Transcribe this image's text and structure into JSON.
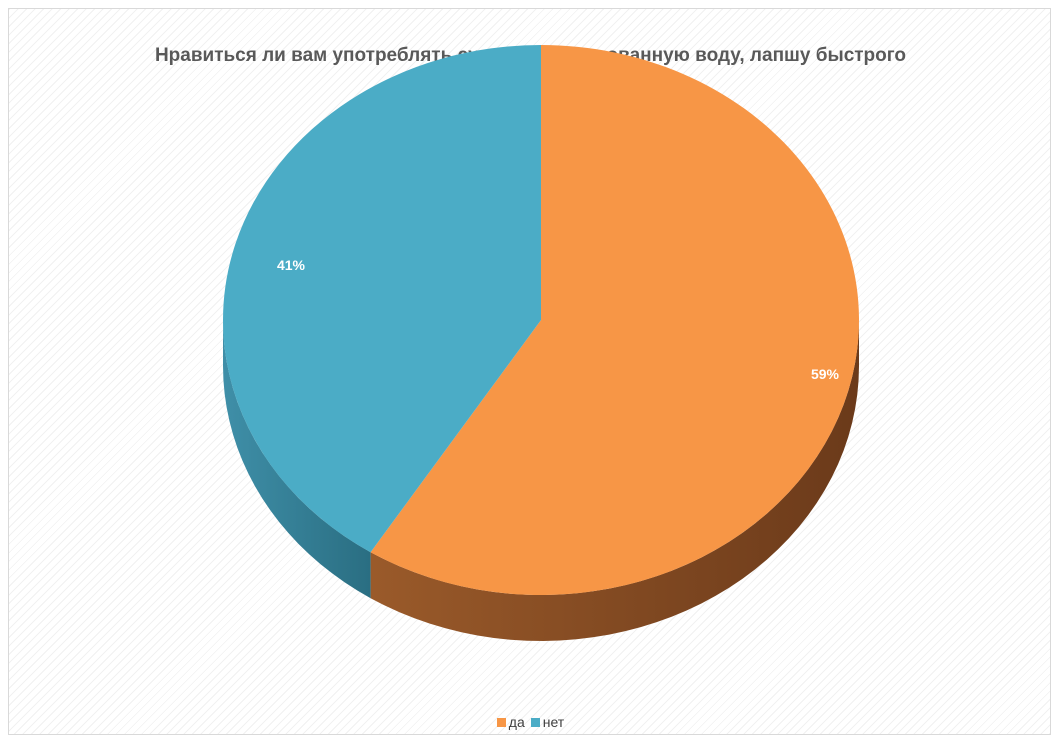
{
  "chart_data": {
    "type": "pie",
    "title": "Нравиться ли вам употреблять сухарики, газированную воду, лапшу быстрого приготовления?",
    "categories": [
      "да",
      "нет"
    ],
    "values": [
      59,
      41
    ],
    "data_labels": [
      "59%",
      "41%"
    ],
    "colors": [
      "#F79646",
      "#4BACC6"
    ],
    "side_colors": [
      "#6B3A1A",
      "#2A6E82"
    ],
    "legend_position": "bottom",
    "style": "3d"
  }
}
